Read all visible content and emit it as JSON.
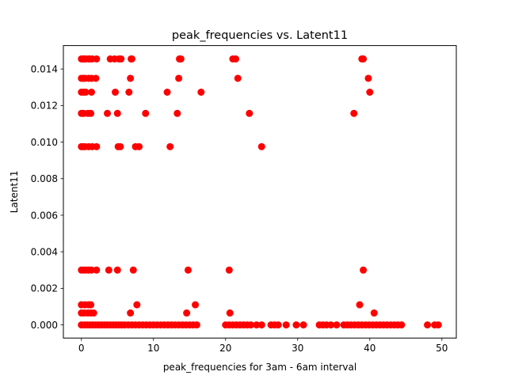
{
  "chart_data": {
    "type": "scatter",
    "title": "peak_frequencies vs. Latent11",
    "xlabel": "peak_frequencies for 3am - 6am interval",
    "ylabel": "Latent11",
    "xlim": [
      -2.5,
      52.0
    ],
    "ylim": [
      -0.00072,
      0.01528
    ],
    "xticks": [
      0,
      10,
      20,
      30,
      40,
      50
    ],
    "xtick_labels": [
      "0",
      "10",
      "20",
      "30",
      "40",
      "50"
    ],
    "yticks": [
      0.0,
      0.002,
      0.004,
      0.006,
      0.008,
      0.01,
      0.012,
      0.014
    ],
    "ytick_labels": [
      "0.000",
      "0.002",
      "0.004",
      "0.006",
      "0.008",
      "0.010",
      "0.012",
      "0.014"
    ],
    "grid": false,
    "legend": "none",
    "marker_color": "#ff0000",
    "series": [
      {
        "x": [
          0.0,
          0.2,
          0.4,
          0.6,
          1.0,
          1.2,
          1.5,
          2.1,
          4.0,
          4.6,
          5.2,
          5.5,
          6.9,
          7.0,
          13.6,
          13.8,
          21.0,
          21.4,
          38.9,
          39.1,
          0.0,
          0.3,
          0.5,
          1.0,
          1.4,
          2.0,
          6.8,
          13.5,
          21.7,
          39.8,
          0.0,
          0.3,
          0.6,
          1.4,
          4.7,
          6.6,
          11.9,
          16.6,
          40.0,
          0.0,
          0.3,
          0.9,
          1.3,
          3.6,
          5.0,
          8.9,
          13.3,
          23.3,
          37.8,
          0.0,
          0.2,
          0.5,
          1.0,
          1.5,
          2.1,
          5.1,
          5.4,
          7.5,
          8.0,
          12.3,
          25.0,
          0.0,
          0.3,
          0.6,
          1.0,
          1.4,
          2.1,
          3.8,
          5.0,
          7.2,
          14.8,
          20.5,
          39.1,
          0.0,
          0.5,
          1.0,
          1.3,
          7.7,
          15.8,
          38.6,
          0.0,
          0.4,
          0.9,
          1.3,
          1.7,
          6.8,
          14.6,
          20.6,
          40.6,
          0.0,
          0.4,
          0.8,
          1.2,
          1.6,
          2.0,
          2.4,
          2.8,
          3.2,
          3.6,
          4.0,
          4.4,
          4.8,
          5.2,
          5.6,
          6.0,
          6.5,
          7.0,
          7.5,
          8.0,
          8.5,
          9.0,
          9.5,
          10.0,
          10.5,
          11.0,
          11.5,
          12.0,
          12.5,
          13.0,
          13.5,
          14.0,
          14.5,
          15.0,
          15.5,
          16.0,
          20.0,
          20.5,
          21.0,
          21.5,
          22.0,
          22.5,
          23.0,
          23.5,
          24.3,
          25.0,
          26.3,
          26.8,
          27.3,
          28.4,
          29.8,
          30.8,
          33.0,
          33.5,
          34.0,
          34.6,
          35.4,
          36.4,
          36.9,
          37.4,
          37.9,
          38.4,
          38.9,
          39.4,
          39.9,
          40.4,
          40.9,
          41.4,
          41.9,
          42.4,
          42.9,
          43.4,
          43.9,
          44.4,
          48.0,
          49.0,
          49.5
        ],
        "y": [
          0.01455,
          0.01455,
          0.01455,
          0.01455,
          0.01455,
          0.01455,
          0.01455,
          0.01455,
          0.01455,
          0.01455,
          0.01455,
          0.01455,
          0.01455,
          0.01455,
          0.01455,
          0.01455,
          0.01455,
          0.01455,
          0.01455,
          0.01455,
          0.01349,
          0.01349,
          0.01349,
          0.01349,
          0.01349,
          0.01349,
          0.01349,
          0.01349,
          0.01349,
          0.01349,
          0.01273,
          0.01273,
          0.01273,
          0.01273,
          0.01273,
          0.01273,
          0.01273,
          0.01273,
          0.01273,
          0.01157,
          0.01157,
          0.01157,
          0.01157,
          0.01157,
          0.01157,
          0.01157,
          0.01157,
          0.01157,
          0.01157,
          0.00975,
          0.00975,
          0.00975,
          0.00975,
          0.00975,
          0.00975,
          0.00975,
          0.00975,
          0.00975,
          0.00975,
          0.00975,
          0.00975,
          0.003,
          0.003,
          0.003,
          0.003,
          0.003,
          0.003,
          0.003,
          0.003,
          0.003,
          0.003,
          0.003,
          0.003,
          0.0011,
          0.0011,
          0.0011,
          0.0011,
          0.0011,
          0.0011,
          0.0011,
          0.00065,
          0.00065,
          0.00065,
          0.00065,
          0.00065,
          0.00065,
          0.00065,
          0.00065,
          0.00065,
          0.0,
          0.0,
          0.0,
          0.0,
          0.0,
          0.0,
          0.0,
          0.0,
          0.0,
          0.0,
          0.0,
          0.0,
          0.0,
          0.0,
          0.0,
          0.0,
          0.0,
          0.0,
          0.0,
          0.0,
          0.0,
          0.0,
          0.0,
          0.0,
          0.0,
          0.0,
          0.0,
          0.0,
          0.0,
          0.0,
          0.0,
          0.0,
          0.0,
          0.0,
          0.0,
          0.0,
          0.0,
          0.0,
          0.0,
          0.0,
          0.0,
          0.0,
          0.0,
          0.0,
          0.0,
          0.0,
          0.0,
          0.0,
          0.0,
          0.0,
          0.0,
          0.0,
          0.0,
          0.0,
          0.0,
          0.0,
          0.0,
          0.0,
          0.0,
          0.0,
          0.0,
          0.0,
          0.0,
          0.0,
          0.0,
          0.0,
          0.0,
          0.0,
          0.0,
          0.0,
          0.0,
          0.0,
          0.0,
          0.0,
          0.0,
          0.0,
          0.0
        ]
      }
    ]
  }
}
